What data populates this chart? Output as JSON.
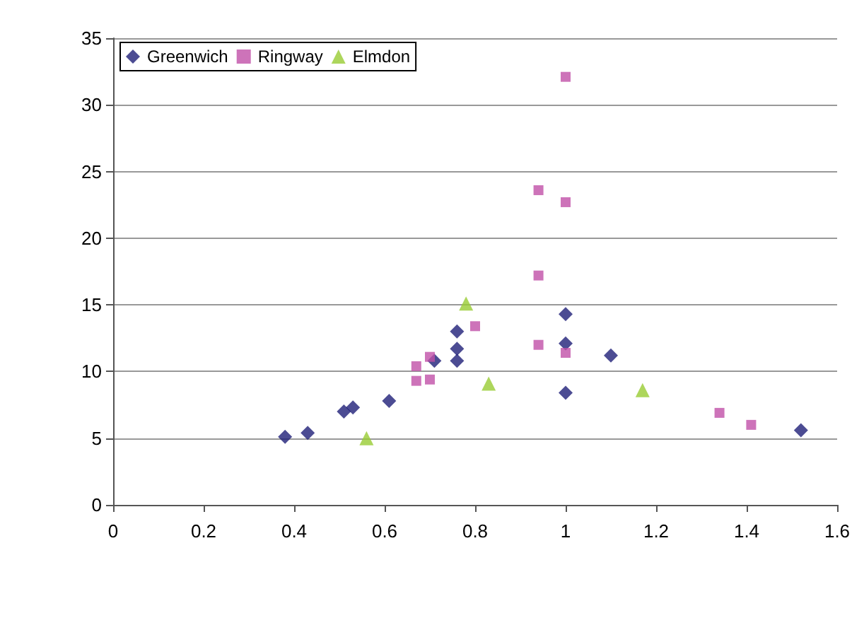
{
  "chart_data": {
    "type": "scatter",
    "xlim": [
      0,
      1.6
    ],
    "xticks": [
      0,
      0.2,
      0.4,
      0.6,
      0.8,
      1,
      1.2,
      1.4,
      1.6
    ],
    "ylim": [
      0,
      35
    ],
    "yticks": [
      0,
      5,
      10,
      15,
      20,
      25,
      30,
      35
    ],
    "grid": "y",
    "legend": "top left",
    "series": [
      {
        "name": "Greenwich",
        "color": "#1f1f78",
        "marker": "diamond",
        "x": [
          0.38,
          0.43,
          0.51,
          0.53,
          0.61,
          0.71,
          0.76,
          0.76,
          0.76,
          1.0,
          1.0,
          1.0,
          1.1,
          1.52
        ],
        "values": [
          5.1,
          5.4,
          7.0,
          7.3,
          7.8,
          10.8,
          10.8,
          11.7,
          13.0,
          14.3,
          12.1,
          8.4,
          11.2,
          5.6
        ]
      },
      {
        "name": "Ringway",
        "color": "#c050a8",
        "marker": "square",
        "x": [
          0.67,
          0.67,
          0.7,
          0.7,
          0.8,
          0.94,
          0.94,
          0.94,
          1.0,
          1.0,
          1.0,
          1.34,
          1.41
        ],
        "values": [
          10.4,
          9.3,
          11.1,
          9.4,
          13.4,
          23.6,
          17.2,
          12.0,
          32.1,
          22.7,
          11.4,
          6.9,
          6.0
        ]
      },
      {
        "name": "Elmdon",
        "color": "#99cc33",
        "marker": "triangle",
        "x": [
          0.56,
          0.78,
          0.83,
          1.17
        ],
        "values": [
          5.0,
          15.1,
          9.1,
          8.6
        ]
      }
    ]
  }
}
